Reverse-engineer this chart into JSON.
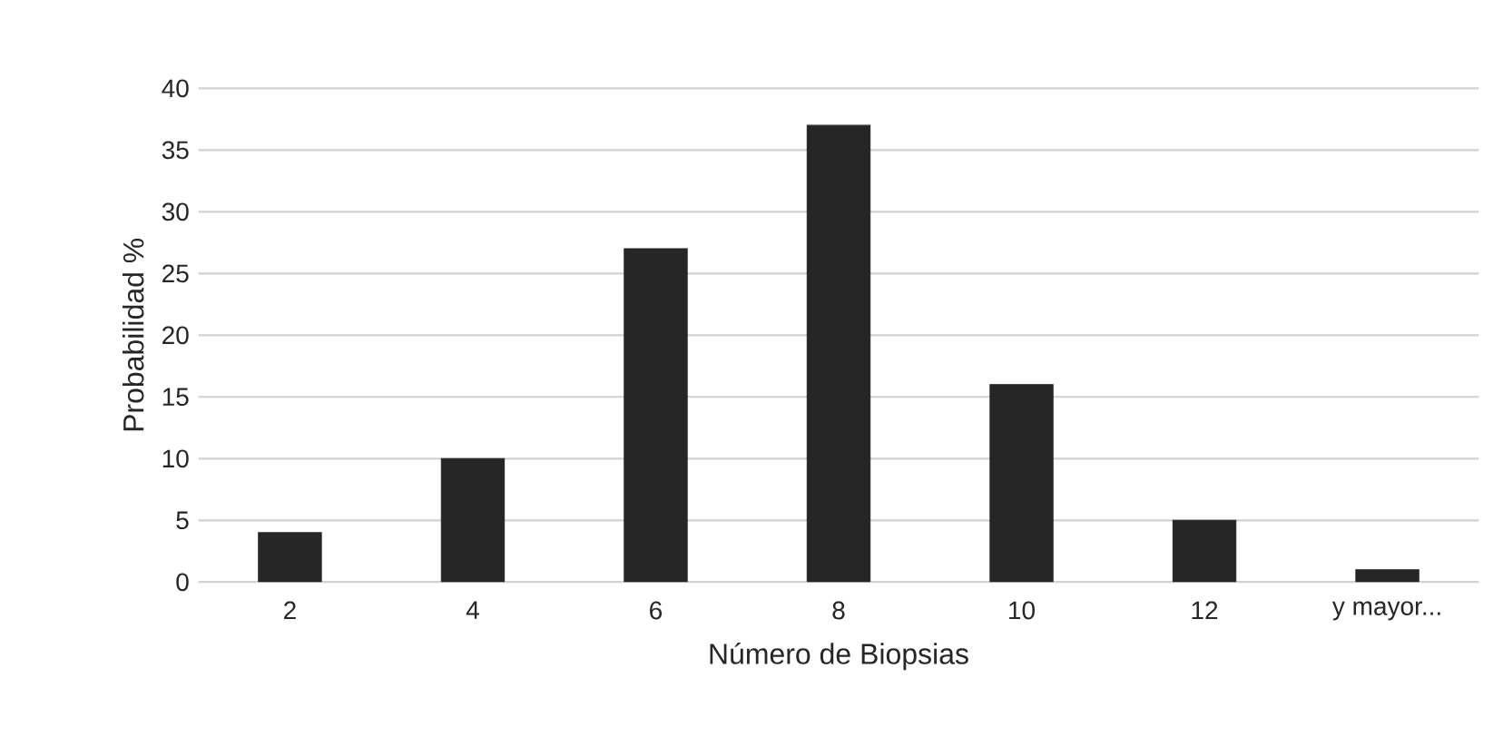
{
  "chart_data": {
    "type": "bar",
    "xlabel": "Número de Biopsias",
    "ylabel": "Probabilidad %",
    "categories": [
      "2",
      "4",
      "6",
      "8",
      "10",
      "12",
      "y mayor..."
    ],
    "values": [
      4,
      10,
      27,
      37,
      16,
      5,
      1
    ],
    "color": "#262626",
    "ylim": [
      0,
      40
    ],
    "yticks": [
      0,
      5,
      10,
      15,
      20,
      25,
      30,
      35,
      40
    ],
    "grid": "y"
  }
}
